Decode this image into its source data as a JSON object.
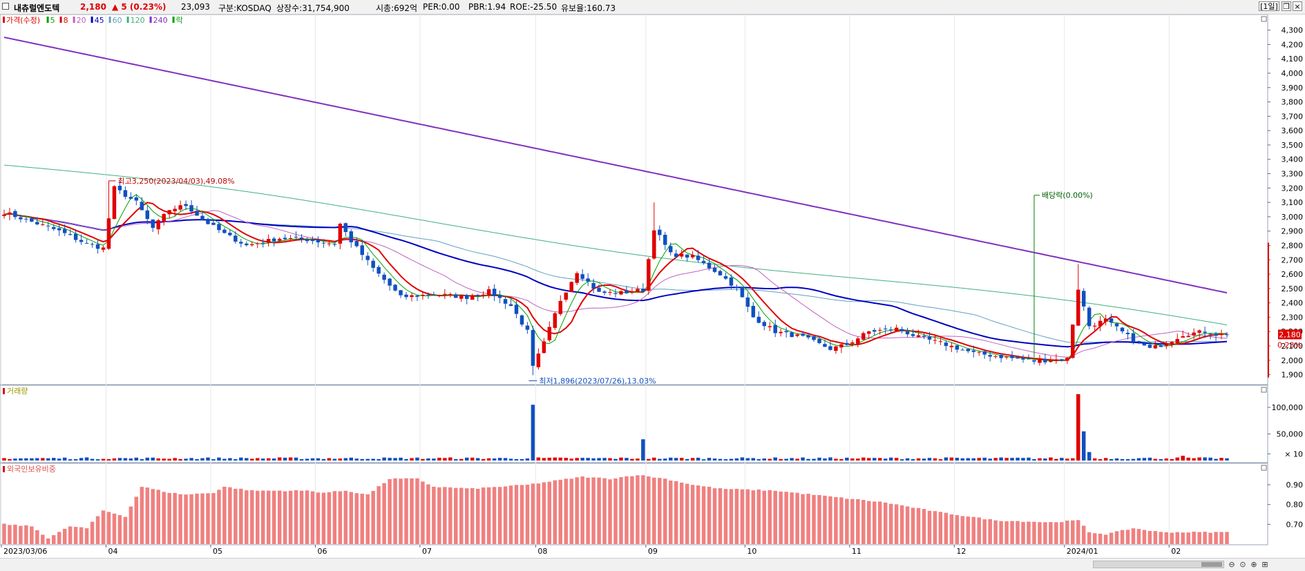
{
  "header": {
    "stock_name": "내츄럴엔도텍",
    "price": "2,180",
    "change": "▲ 5 (0.23%)",
    "volume": "23,093",
    "market": "구분:KOSDAQ",
    "shares": "상장수:31,754,900",
    "market_cap": "시총:692억",
    "per": "PER:0.00",
    "pbr": "PBR:1.94",
    "roe": "ROE:-25.50",
    "retention": "유보율:160.73",
    "period_button": "[1일]",
    "colors": {
      "up": "#e00000",
      "down": "#1050c0"
    }
  },
  "chart_data": [
    {
      "type": "candlestick",
      "title": "",
      "legend": [
        "가격(수정)",
        "5",
        "8",
        "20",
        "45",
        "60",
        "120",
        "240",
        "락"
      ],
      "legend_colors": [
        "#e00000",
        "#00a000",
        "#e00000",
        "#c060c0",
        "#0000c0",
        "#60a0c0",
        "#40b080",
        "#8030c0",
        "#00a000"
      ],
      "y_ticks": [
        "4,300",
        "4,200",
        "4,100",
        "4,000",
        "3,900",
        "3,800",
        "3,700",
        "3,600",
        "3,500",
        "3,400",
        "3,300",
        "3,200",
        "3,100",
        "3,000",
        "2,900",
        "2,800",
        "2,700",
        "2,600",
        "2,500",
        "2,400",
        "2,300",
        "2,200",
        "2,100",
        "2,000",
        "1,900"
      ],
      "ylim": [
        1850,
        4380
      ],
      "current_price_label": "2,180",
      "current_change_label": "0.23%",
      "annotations": {
        "high": "최고3,250(2023/04/03),49.08%",
        "low": "최저1,896(2023/07/26),13.03%",
        "dividend": "배당락(0.00%)"
      },
      "close_keypoints": [
        [
          0,
          3030
        ],
        [
          10,
          2900
        ],
        [
          15,
          2810
        ],
        [
          18,
          2780
        ],
        [
          20,
          3200
        ],
        [
          24,
          3100
        ],
        [
          27,
          2920
        ],
        [
          30,
          3050
        ],
        [
          33,
          3080
        ],
        [
          36,
          2980
        ],
        [
          40,
          2880
        ],
        [
          44,
          2800
        ],
        [
          50,
          2850
        ],
        [
          55,
          2840
        ],
        [
          60,
          2810
        ],
        [
          61,
          2950
        ],
        [
          63,
          2830
        ],
        [
          67,
          2640
        ],
        [
          72,
          2440
        ],
        [
          78,
          2460
        ],
        [
          84,
          2440
        ],
        [
          88,
          2480
        ],
        [
          92,
          2380
        ],
        [
          95,
          2200
        ],
        [
          96,
          1950
        ],
        [
          98,
          2120
        ],
        [
          101,
          2420
        ],
        [
          104,
          2620
        ],
        [
          108,
          2470
        ],
        [
          112,
          2470
        ],
        [
          116,
          2490
        ],
        [
          118,
          2920
        ],
        [
          121,
          2740
        ],
        [
          125,
          2720
        ],
        [
          130,
          2600
        ],
        [
          133,
          2500
        ],
        [
          136,
          2300
        ],
        [
          140,
          2200
        ],
        [
          145,
          2160
        ],
        [
          150,
          2080
        ],
        [
          153,
          2110
        ],
        [
          157,
          2200
        ],
        [
          162,
          2220
        ],
        [
          166,
          2160
        ],
        [
          170,
          2120
        ],
        [
          176,
          2050
        ],
        [
          182,
          2020
        ],
        [
          187,
          1995
        ],
        [
          193,
          2010
        ],
        [
          195,
          2500
        ],
        [
          197,
          2240
        ],
        [
          200,
          2280
        ],
        [
          205,
          2140
        ],
        [
          208,
          2080
        ],
        [
          211,
          2120
        ],
        [
          214,
          2180
        ],
        [
          218,
          2200
        ],
        [
          220,
          2180
        ],
        [
          222,
          2180
        ]
      ],
      "ma_labels": [
        "5",
        "8",
        "20",
        "45",
        "60",
        "120",
        "240"
      ]
    },
    {
      "type": "bar",
      "title": "거래량",
      "y_ticks": [
        "100,000",
        "50,000",
        "× 10"
      ],
      "ylim": [
        0,
        130000
      ],
      "spikes": [
        {
          "index": 96,
          "value": 105000
        },
        {
          "index": 116,
          "value": 40000
        },
        {
          "index": 195,
          "value": 125000
        },
        {
          "index": 196,
          "value": 55000
        },
        {
          "index": 197,
          "value": 16000
        },
        {
          "index": 214,
          "value": 9000
        }
      ],
      "base_volume": 4000
    },
    {
      "type": "bar",
      "title": "외국인보유비중",
      "y_ticks": [
        "0.90",
        "0.80",
        "0.70"
      ],
      "ylim": [
        0.6,
        0.97
      ],
      "keypoints": [
        [
          0,
          0.7
        ],
        [
          5,
          0.69
        ],
        [
          8,
          0.63
        ],
        [
          12,
          0.69
        ],
        [
          15,
          0.68
        ],
        [
          18,
          0.77
        ],
        [
          22,
          0.74
        ],
        [
          25,
          0.89
        ],
        [
          30,
          0.86
        ],
        [
          33,
          0.85
        ],
        [
          38,
          0.86
        ],
        [
          40,
          0.89
        ],
        [
          45,
          0.87
        ],
        [
          55,
          0.87
        ],
        [
          58,
          0.86
        ],
        [
          62,
          0.87
        ],
        [
          66,
          0.85
        ],
        [
          70,
          0.93
        ],
        [
          75,
          0.93
        ],
        [
          78,
          0.89
        ],
        [
          85,
          0.88
        ],
        [
          90,
          0.89
        ],
        [
          95,
          0.9
        ],
        [
          100,
          0.92
        ],
        [
          105,
          0.94
        ],
        [
          110,
          0.93
        ],
        [
          115,
          0.95
        ],
        [
          120,
          0.93
        ],
        [
          125,
          0.9
        ],
        [
          130,
          0.88
        ],
        [
          140,
          0.87
        ],
        [
          150,
          0.84
        ],
        [
          160,
          0.81
        ],
        [
          170,
          0.76
        ],
        [
          180,
          0.72
        ],
        [
          190,
          0.71
        ],
        [
          195,
          0.72
        ],
        [
          197,
          0.66
        ],
        [
          200,
          0.65
        ],
        [
          205,
          0.68
        ],
        [
          210,
          0.66
        ],
        [
          215,
          0.66
        ],
        [
          222,
          0.66
        ]
      ]
    }
  ],
  "x_ticks": [
    "2023/03/06",
    "04",
    "05",
    "06",
    "07",
    "08",
    "09",
    "10",
    "11",
    "12",
    "2024/01",
    "02"
  ],
  "x_tick_indices": [
    0,
    19,
    38,
    57,
    76,
    97,
    117,
    135,
    154,
    173,
    193,
    212
  ],
  "n_bars": 223
}
